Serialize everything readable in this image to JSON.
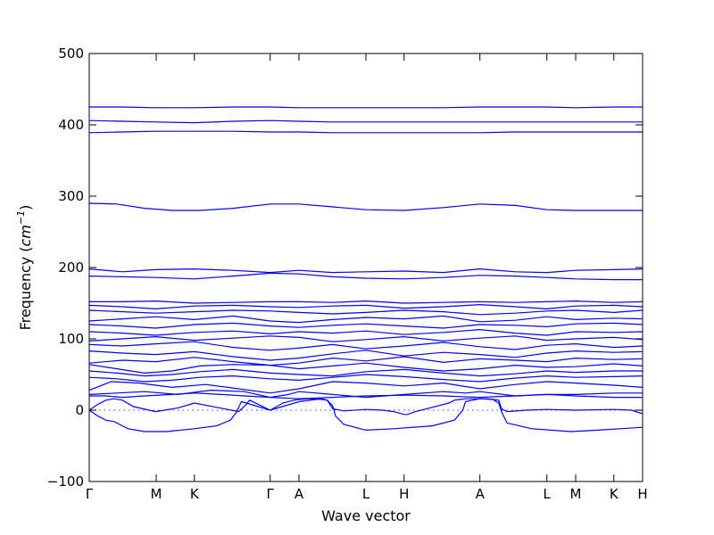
{
  "chart_data": {
    "type": "line",
    "xlabel": "Wave vector",
    "ylabel": "Frequency",
    "ylabel_unit": "cm",
    "ylabel_unit_exp": "−1",
    "ylim": [
      -100,
      500
    ],
    "yticks": [
      -100,
      0,
      100,
      200,
      300,
      400,
      500
    ],
    "xlim": [
      0,
      1
    ],
    "x_ticks": [
      {
        "label": "Γ",
        "x": 0.0
      },
      {
        "label": "M",
        "x": 0.121
      },
      {
        "label": "K",
        "x": 0.19
      },
      {
        "label": "Γ",
        "x": 0.327
      },
      {
        "label": "A",
        "x": 0.379
      },
      {
        "label": "L",
        "x": 0.5
      },
      {
        "label": "H",
        "x": 0.569
      },
      {
        "label": "A",
        "x": 0.706
      },
      {
        "label": "L",
        "x": 0.827
      },
      {
        "label": "M",
        "x": 0.879
      },
      {
        "label": "K",
        "x": 0.948
      },
      {
        "label": "H",
        "x": 1.0
      }
    ],
    "series_color": "#0000ff",
    "zero_line": {
      "y": 0,
      "style": "dotted"
    },
    "bands": [
      {
        "x": [
          0,
          0.06,
          0.12,
          0.19,
          0.26,
          0.327,
          0.379,
          0.44,
          0.5,
          0.569,
          0.64,
          0.706,
          0.77,
          0.827,
          0.879,
          0.948,
          1.0
        ],
        "y": [
          425,
          425,
          424,
          424,
          425,
          425,
          424,
          424,
          424,
          424,
          424,
          425,
          425,
          425,
          424,
          425,
          425
        ]
      },
      {
        "x": [
          0,
          0.06,
          0.12,
          0.19,
          0.26,
          0.327,
          0.379,
          0.44,
          0.5,
          0.569,
          0.64,
          0.706,
          0.77,
          0.827,
          0.879,
          0.948,
          1.0
        ],
        "y": [
          406,
          405,
          404,
          403,
          405,
          406,
          405,
          404,
          404,
          404,
          404,
          404,
          404,
          404,
          404,
          404,
          404
        ]
      },
      {
        "x": [
          0,
          0.06,
          0.12,
          0.19,
          0.26,
          0.327,
          0.379,
          0.44,
          0.5,
          0.569,
          0.64,
          0.706,
          0.77,
          0.827,
          0.879,
          0.948,
          1.0
        ],
        "y": [
          389,
          390,
          391,
          391,
          391,
          390,
          390,
          389,
          389,
          389,
          389,
          389,
          390,
          390,
          390,
          390,
          390
        ]
      },
      {
        "x": [
          0,
          0.05,
          0.1,
          0.15,
          0.2,
          0.26,
          0.327,
          0.379,
          0.44,
          0.5,
          0.569,
          0.64,
          0.706,
          0.77,
          0.827,
          0.879,
          0.948,
          1.0
        ],
        "y": [
          290,
          289,
          283,
          280,
          280,
          283,
          289,
          289,
          285,
          281,
          280,
          284,
          289,
          287,
          281,
          280,
          280,
          280
        ]
      },
      {
        "x": [
          0,
          0.06,
          0.12,
          0.19,
          0.26,
          0.327,
          0.379,
          0.44,
          0.5,
          0.569,
          0.64,
          0.706,
          0.77,
          0.827,
          0.879,
          0.948,
          1.0
        ],
        "y": [
          198,
          194,
          197,
          198,
          196,
          193,
          196,
          193,
          194,
          195,
          193,
          198,
          194,
          193,
          196,
          197,
          198
        ]
      },
      {
        "x": [
          0,
          0.06,
          0.12,
          0.19,
          0.26,
          0.327,
          0.379,
          0.44,
          0.5,
          0.569,
          0.64,
          0.706,
          0.77,
          0.827,
          0.879,
          0.948,
          1.0
        ],
        "y": [
          188,
          187,
          186,
          184,
          188,
          192,
          191,
          187,
          185,
          184,
          186,
          189,
          188,
          186,
          184,
          183,
          183
        ]
      },
      {
        "x": [
          0,
          0.06,
          0.12,
          0.19,
          0.26,
          0.327,
          0.379,
          0.44,
          0.5,
          0.569,
          0.64,
          0.706,
          0.77,
          0.827,
          0.879,
          0.948,
          1.0
        ],
        "y": [
          152,
          152,
          153,
          150,
          151,
          152,
          152,
          151,
          153,
          150,
          151,
          152,
          151,
          152,
          153,
          151,
          152
        ]
      },
      {
        "x": [
          0,
          0.06,
          0.12,
          0.19,
          0.26,
          0.327,
          0.379,
          0.44,
          0.5,
          0.569,
          0.64,
          0.706,
          0.77,
          0.827,
          0.879,
          0.948,
          1.0
        ],
        "y": [
          147,
          145,
          142,
          146,
          147,
          145,
          144,
          146,
          147,
          143,
          145,
          148,
          145,
          142,
          146,
          147,
          145
        ]
      },
      {
        "x": [
          0,
          0.06,
          0.12,
          0.19,
          0.26,
          0.327,
          0.379,
          0.44,
          0.5,
          0.569,
          0.64,
          0.706,
          0.77,
          0.827,
          0.879,
          0.948,
          1.0
        ],
        "y": [
          140,
          138,
          136,
          138,
          140,
          139,
          137,
          135,
          137,
          140,
          138,
          134,
          136,
          139,
          140,
          137,
          140
        ]
      },
      {
        "x": [
          0,
          0.06,
          0.12,
          0.19,
          0.26,
          0.327,
          0.379,
          0.44,
          0.5,
          0.569,
          0.64,
          0.706,
          0.77,
          0.827,
          0.879,
          0.948,
          1.0
        ],
        "y": [
          125,
          128,
          131,
          127,
          132,
          125,
          123,
          127,
          130,
          128,
          132,
          124,
          126,
          131,
          127,
          129,
          128
        ]
      },
      {
        "x": [
          0,
          0.06,
          0.12,
          0.19,
          0.26,
          0.327,
          0.379,
          0.44,
          0.5,
          0.569,
          0.64,
          0.706,
          0.77,
          0.827,
          0.879,
          0.948,
          1.0
        ],
        "y": [
          120,
          118,
          115,
          120,
          122,
          118,
          116,
          119,
          121,
          118,
          115,
          120,
          119,
          117,
          121,
          122,
          120
        ]
      },
      {
        "x": [
          0,
          0.06,
          0.12,
          0.19,
          0.26,
          0.327,
          0.379,
          0.44,
          0.5,
          0.569,
          0.64,
          0.706,
          0.77,
          0.827,
          0.879,
          0.948,
          1.0
        ],
        "y": [
          110,
          108,
          105,
          109,
          111,
          107,
          110,
          108,
          111,
          106,
          109,
          113,
          108,
          105,
          110,
          109,
          110
        ]
      },
      {
        "x": [
          0,
          0.06,
          0.12,
          0.19,
          0.26,
          0.327,
          0.379,
          0.44,
          0.5,
          0.569,
          0.64,
          0.706,
          0.77,
          0.827,
          0.879,
          0.948,
          1.0
        ],
        "y": [
          97,
          100,
          103,
          98,
          101,
          104,
          102,
          96,
          99,
          103,
          97,
          101,
          104,
          98,
          100,
          102,
          99
        ]
      },
      {
        "x": [
          0,
          0.06,
          0.12,
          0.19,
          0.26,
          0.327,
          0.379,
          0.44,
          0.5,
          0.569,
          0.64,
          0.706,
          0.77,
          0.827,
          0.879,
          0.948,
          1.0
        ],
        "y": [
          92,
          90,
          93,
          96,
          88,
          84,
          87,
          92,
          86,
          90,
          95,
          89,
          85,
          91,
          93,
          88,
          90
        ]
      },
      {
        "x": [
          0,
          0.06,
          0.12,
          0.19,
          0.26,
          0.327,
          0.379,
          0.44,
          0.5,
          0.569,
          0.64,
          0.706,
          0.77,
          0.827,
          0.879,
          0.948,
          1.0
        ],
        "y": [
          83,
          80,
          78,
          82,
          75,
          70,
          73,
          79,
          84,
          76,
          81,
          78,
          74,
          80,
          83,
          81,
          82
        ]
      },
      {
        "x": [
          0,
          0.06,
          0.12,
          0.19,
          0.26,
          0.327,
          0.379,
          0.44,
          0.5,
          0.569,
          0.64,
          0.706,
          0.77,
          0.827,
          0.879,
          0.948,
          1.0
        ],
        "y": [
          66,
          70,
          68,
          74,
          68,
          63,
          66,
          73,
          69,
          75,
          67,
          72,
          70,
          68,
          73,
          71,
          72
        ]
      },
      {
        "x": [
          0,
          0.05,
          0.1,
          0.15,
          0.2,
          0.26,
          0.327,
          0.379,
          0.44,
          0.5,
          0.569,
          0.64,
          0.706,
          0.77,
          0.827,
          0.879,
          0.948,
          1.0
        ],
        "y": [
          64,
          58,
          52,
          55,
          62,
          64,
          63,
          58,
          62,
          66,
          60,
          55,
          58,
          63,
          60,
          61,
          65,
          62
        ]
      },
      {
        "x": [
          0,
          0.05,
          0.1,
          0.15,
          0.2,
          0.26,
          0.327,
          0.379,
          0.44,
          0.5,
          0.569,
          0.64,
          0.706,
          0.77,
          0.827,
          0.879,
          0.948,
          1.0
        ],
        "y": [
          55,
          52,
          48,
          50,
          54,
          57,
          52,
          50,
          48,
          54,
          57,
          52,
          48,
          51,
          55,
          53,
          55,
          55
        ]
      },
      {
        "x": [
          0,
          0.05,
          0.1,
          0.15,
          0.2,
          0.26,
          0.327,
          0.379,
          0.44,
          0.5,
          0.569,
          0.64,
          0.706,
          0.77,
          0.827,
          0.879,
          0.948,
          1.0
        ],
        "y": [
          46,
          44,
          40,
          42,
          46,
          48,
          44,
          42,
          46,
          50,
          47,
          43,
          40,
          45,
          48,
          46,
          47,
          48
        ]
      },
      {
        "x": [
          0,
          0.04,
          0.09,
          0.15,
          0.21,
          0.27,
          0.327,
          0.379,
          0.44,
          0.5,
          0.569,
          0.64,
          0.706,
          0.77,
          0.827,
          0.879,
          0.948,
          1.0
        ],
        "y": [
          28,
          40,
          38,
          32,
          36,
          30,
          24,
          30,
          40,
          38,
          34,
          38,
          30,
          36,
          40,
          38,
          35,
          32
        ]
      },
      {
        "x": [
          0,
          0.05,
          0.1,
          0.16,
          0.22,
          0.28,
          0.327,
          0.36,
          0.379,
          0.44,
          0.5,
          0.569,
          0.64,
          0.68,
          0.706,
          0.77,
          0.827,
          0.879,
          0.948,
          1.0
        ],
        "y": [
          22,
          24,
          26,
          22,
          28,
          26,
          18,
          22,
          26,
          22,
          18,
          22,
          26,
          24,
          26,
          20,
          22,
          22,
          24,
          24
        ]
      },
      {
        "x": [
          0,
          0.03,
          0.06,
          0.1,
          0.15,
          0.19,
          0.24,
          0.28,
          0.327,
          0.379,
          0.44,
          0.5,
          0.569,
          0.64,
          0.706,
          0.77,
          0.827,
          0.879,
          0.948,
          1.0
        ],
        "y": [
          20,
          20,
          18,
          20,
          22,
          24,
          22,
          20,
          18,
          16,
          18,
          20,
          21,
          20,
          18,
          20,
          22,
          20,
          18,
          18
        ]
      },
      {
        "x": [
          0,
          0.015,
          0.03,
          0.045,
          0.06,
          0.08,
          0.12,
          0.16,
          0.19,
          0.23,
          0.27,
          0.28,
          0.29,
          0.327,
          0.35,
          0.37,
          0.379,
          0.4,
          0.42,
          0.43,
          0.44,
          0.46,
          0.5,
          0.53,
          0.55,
          0.569,
          0.575,
          0.59,
          0.62,
          0.65,
          0.66,
          0.67,
          0.68,
          0.706,
          0.72,
          0.73,
          0.74,
          0.745,
          0.755,
          0.79,
          0.827,
          0.879,
          0.948,
          0.98,
          1.0
        ],
        "y": [
          0,
          8,
          14,
          16,
          14,
          5,
          -2,
          3,
          10,
          4,
          -2,
          5,
          14,
          0,
          10,
          14,
          15,
          16,
          15,
          14,
          2,
          -1,
          1,
          0,
          -2,
          -6,
          -6,
          -2,
          4,
          10,
          14,
          15,
          16,
          16,
          16,
          15,
          14,
          2,
          -2,
          0,
          1,
          0,
          1,
          0,
          -5
        ]
      },
      {
        "x": [
          0,
          0.015,
          0.03,
          0.045,
          0.055,
          0.07,
          0.1,
          0.14,
          0.19,
          0.23,
          0.255,
          0.265,
          0.275,
          0.327,
          0.38,
          0.42,
          0.43,
          0.44,
          0.445,
          0.46,
          0.5,
          0.55,
          0.62,
          0.66,
          0.675,
          0.68,
          0.706,
          0.73,
          0.74,
          0.745,
          0.755,
          0.8,
          0.87,
          0.92,
          0.96,
          1.0
        ],
        "y": [
          0,
          -8,
          -14,
          -16,
          -20,
          -26,
          -30,
          -30,
          -26,
          -22,
          -14,
          -4,
          12,
          0,
          12,
          16,
          14,
          6,
          -8,
          -20,
          -28,
          -26,
          -22,
          -14,
          0,
          12,
          16,
          15,
          10,
          -2,
          -18,
          -26,
          -30,
          -28,
          -26,
          -24
        ]
      }
    ]
  }
}
